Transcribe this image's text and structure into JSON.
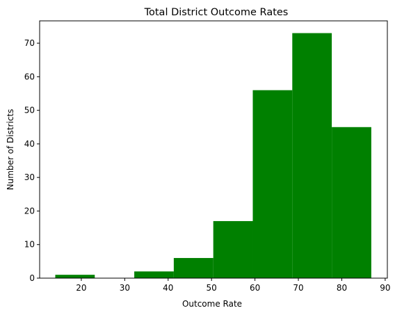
{
  "chart_data": {
    "type": "bar",
    "title": "Total District Outcome Rates",
    "xlabel": "Outcome Rate",
    "ylabel": "Number of Districts",
    "bar_color": "#008000",
    "bins": [
      {
        "x0": 14.0,
        "x1": 23.1,
        "count": 1
      },
      {
        "x0": 23.1,
        "x1": 32.2,
        "count": 0
      },
      {
        "x0": 32.2,
        "x1": 41.3,
        "count": 2
      },
      {
        "x0": 41.3,
        "x1": 50.4,
        "count": 6
      },
      {
        "x0": 50.4,
        "x1": 59.5,
        "count": 17
      },
      {
        "x0": 59.5,
        "x1": 68.6,
        "count": 56
      },
      {
        "x0": 68.6,
        "x1": 77.7,
        "count": 73
      },
      {
        "x0": 77.7,
        "x1": 86.8,
        "count": 45
      }
    ],
    "xlim": [
      10.4,
      90.5
    ],
    "ylim": [
      0,
      76.65
    ],
    "xticks": [
      20,
      30,
      40,
      50,
      60,
      70,
      80,
      90
    ],
    "yticks": [
      0,
      10,
      20,
      30,
      40,
      50,
      60,
      70
    ],
    "grid": false,
    "legend": "none"
  }
}
